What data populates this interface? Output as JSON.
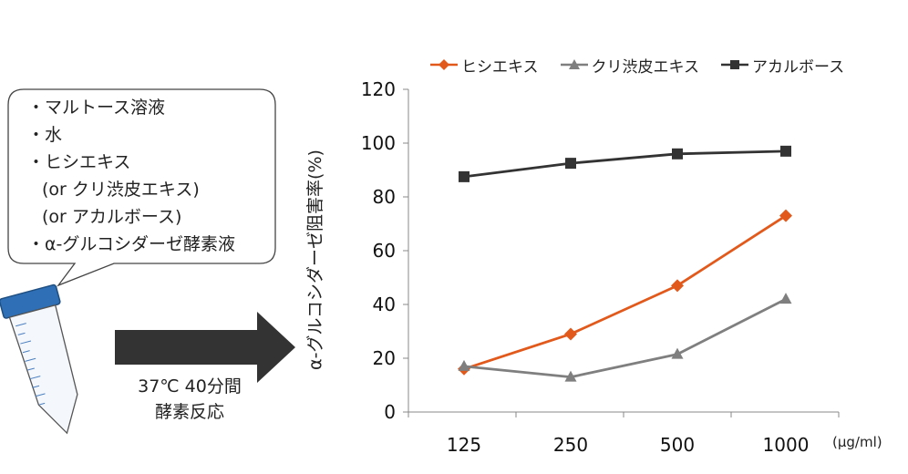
{
  "bubble": {
    "lines": [
      "・マルトース溶液",
      "・水",
      "・ヒシエキス",
      "(or クリ渋皮エキス)",
      "(or アカルボース)",
      "・α-グルコシダーゼ酵素液"
    ]
  },
  "arrow": {
    "line1": "37℃ 40分間",
    "line2": "酵素反応"
  },
  "chart_data": {
    "type": "line",
    "categories": [
      "125",
      "250",
      "500",
      "1000"
    ],
    "x_unit": "(μg/ml)",
    "ylabel": "α-グルコシダーゼ阻害率(%)",
    "ylim": [
      0,
      120
    ],
    "yticks": [
      0,
      20,
      40,
      60,
      80,
      100,
      120
    ],
    "grid": false,
    "legend_position": "top",
    "series": [
      {
        "name": "ヒシエキス",
        "marker": "diamond",
        "color": "#e2591c",
        "values": [
          16,
          29,
          47,
          73
        ]
      },
      {
        "name": "クリ渋皮エキス",
        "marker": "triangle",
        "color": "#7f7f7f",
        "values": [
          17,
          13,
          21.5,
          42
        ]
      },
      {
        "name": "アカルボース",
        "marker": "square",
        "color": "#333333",
        "values": [
          87.5,
          92.5,
          96,
          97
        ]
      }
    ]
  }
}
